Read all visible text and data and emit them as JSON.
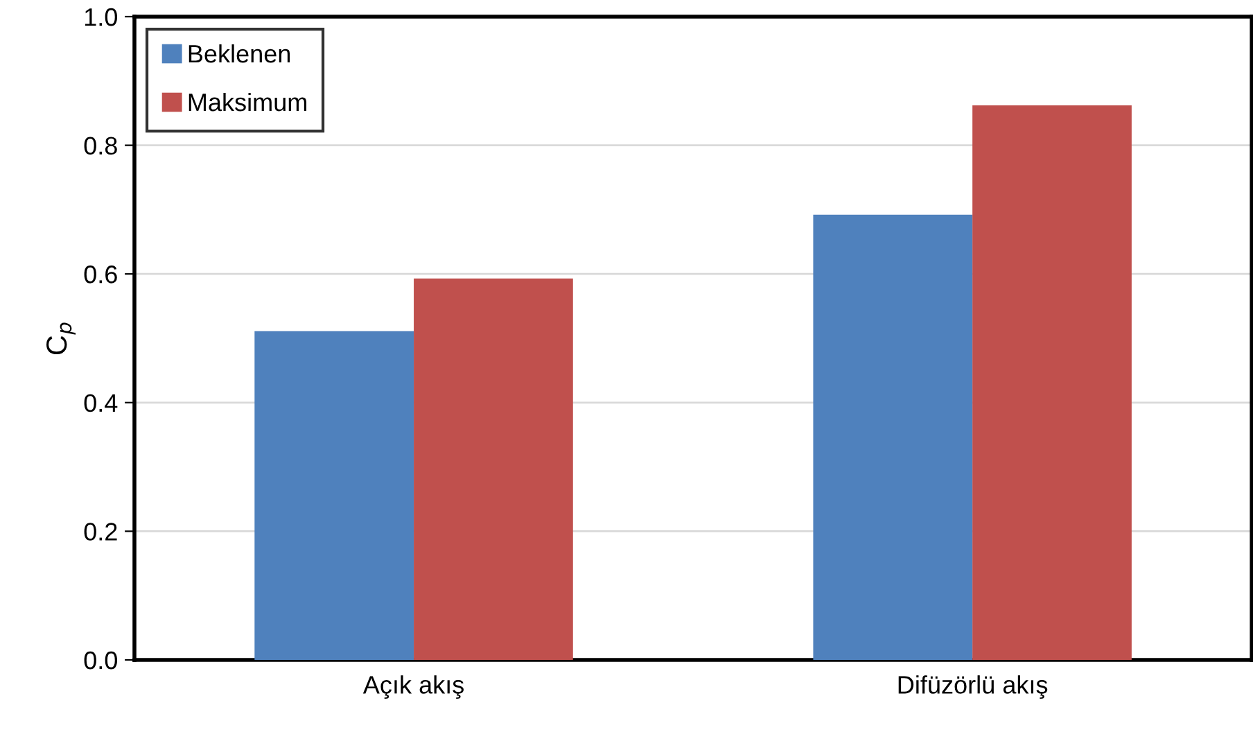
{
  "chart_data": {
    "type": "bar",
    "ylabel": "C$_{p}$",
    "categories": [
      "Açık akış",
      "Difüzörlü akış"
    ],
    "series": [
      {
        "name": "Beklenen",
        "color": "#4f81bd",
        "values": [
          0.511,
          0.692
        ]
      },
      {
        "name": "Maksimum",
        "color": "#c0504d",
        "values": [
          0.593,
          0.862
        ]
      }
    ],
    "ylim": [
      0,
      1
    ],
    "yticks": [
      {
        "value": 0,
        "label": "0.0"
      },
      {
        "value": 0.2,
        "label": "0.2"
      },
      {
        "value": 0.4,
        "label": "0.4"
      },
      {
        "value": 0.6,
        "label": "0.6"
      },
      {
        "value": 0.8,
        "label": "0.8"
      },
      {
        "value": 1,
        "label": "1.0"
      }
    ],
    "grid": "y",
    "legend": "top left"
  }
}
